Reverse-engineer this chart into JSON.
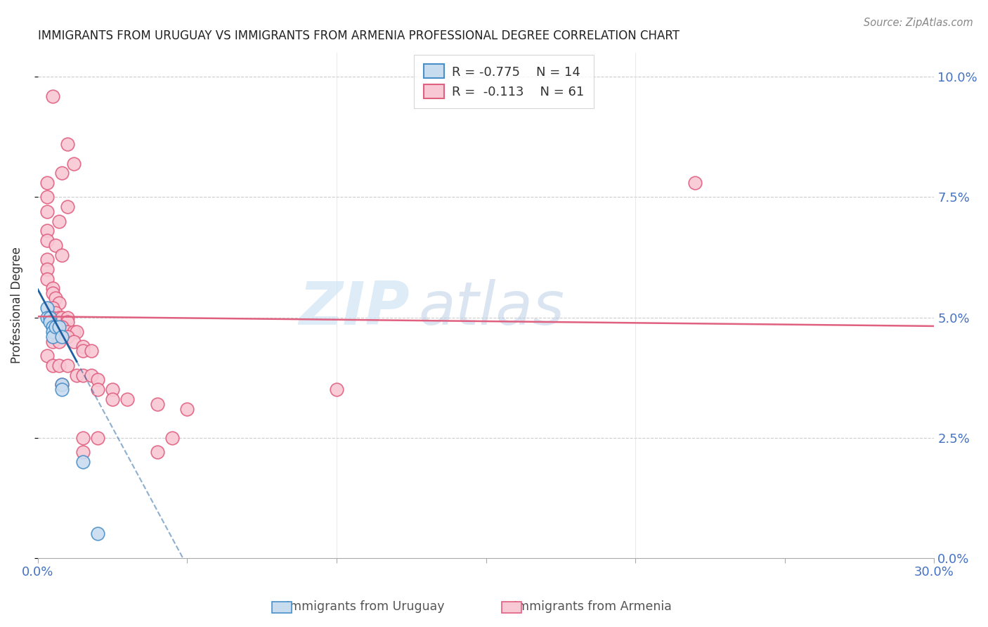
{
  "title": "IMMIGRANTS FROM URUGUAY VS IMMIGRANTS FROM ARMENIA PROFESSIONAL DEGREE CORRELATION CHART",
  "source": "Source: ZipAtlas.com",
  "ylabel": "Professional Degree",
  "xlim": [
    0.0,
    0.3
  ],
  "ylim": [
    0.0,
    0.105
  ],
  "watermark_zip": "ZIP",
  "watermark_atlas": "atlas",
  "legend_r1": "R = -0.775",
  "legend_n1": "N = 14",
  "legend_r2": "R =  -0.113",
  "legend_n2": "N = 61",
  "uruguay_fill": "#c8dcf0",
  "uruguay_edge": "#4a90c8",
  "armenia_fill": "#f8c8d4",
  "armenia_edge": "#e06080",
  "armenia_line_color": "#e06080",
  "uruguay_line_color": "#2060a0",
  "armenia_points": [
    [
      0.005,
      0.096
    ],
    [
      0.01,
      0.086
    ],
    [
      0.012,
      0.082
    ],
    [
      0.008,
      0.08
    ],
    [
      0.003,
      0.078
    ],
    [
      0.003,
      0.075
    ],
    [
      0.01,
      0.073
    ],
    [
      0.003,
      0.072
    ],
    [
      0.007,
      0.07
    ],
    [
      0.003,
      0.068
    ],
    [
      0.003,
      0.066
    ],
    [
      0.006,
      0.065
    ],
    [
      0.008,
      0.063
    ],
    [
      0.003,
      0.062
    ],
    [
      0.003,
      0.06
    ],
    [
      0.003,
      0.058
    ],
    [
      0.005,
      0.056
    ],
    [
      0.005,
      0.055
    ],
    [
      0.006,
      0.054
    ],
    [
      0.007,
      0.053
    ],
    [
      0.005,
      0.052
    ],
    [
      0.006,
      0.051
    ],
    [
      0.005,
      0.05
    ],
    [
      0.007,
      0.05
    ],
    [
      0.008,
      0.05
    ],
    [
      0.01,
      0.05
    ],
    [
      0.01,
      0.049
    ],
    [
      0.005,
      0.048
    ],
    [
      0.008,
      0.048
    ],
    [
      0.01,
      0.047
    ],
    [
      0.012,
      0.047
    ],
    [
      0.013,
      0.047
    ],
    [
      0.01,
      0.046
    ],
    [
      0.005,
      0.045
    ],
    [
      0.007,
      0.045
    ],
    [
      0.012,
      0.045
    ],
    [
      0.015,
      0.044
    ],
    [
      0.015,
      0.043
    ],
    [
      0.018,
      0.043
    ],
    [
      0.003,
      0.042
    ],
    [
      0.005,
      0.04
    ],
    [
      0.007,
      0.04
    ],
    [
      0.01,
      0.04
    ],
    [
      0.013,
      0.038
    ],
    [
      0.015,
      0.038
    ],
    [
      0.018,
      0.038
    ],
    [
      0.02,
      0.037
    ],
    [
      0.008,
      0.036
    ],
    [
      0.02,
      0.035
    ],
    [
      0.025,
      0.035
    ],
    [
      0.025,
      0.033
    ],
    [
      0.03,
      0.033
    ],
    [
      0.04,
      0.032
    ],
    [
      0.05,
      0.031
    ],
    [
      0.015,
      0.025
    ],
    [
      0.02,
      0.025
    ],
    [
      0.045,
      0.025
    ],
    [
      0.015,
      0.022
    ],
    [
      0.04,
      0.022
    ],
    [
      0.1,
      0.035
    ],
    [
      0.22,
      0.078
    ]
  ],
  "uruguay_points": [
    [
      0.003,
      0.052
    ],
    [
      0.003,
      0.05
    ],
    [
      0.004,
      0.05
    ],
    [
      0.004,
      0.049
    ],
    [
      0.005,
      0.048
    ],
    [
      0.005,
      0.047
    ],
    [
      0.005,
      0.046
    ],
    [
      0.006,
      0.048
    ],
    [
      0.007,
      0.048
    ],
    [
      0.008,
      0.046
    ],
    [
      0.008,
      0.036
    ],
    [
      0.008,
      0.035
    ],
    [
      0.015,
      0.02
    ],
    [
      0.02,
      0.005
    ]
  ],
  "armenia_regression": [
    -0.0067,
    0.0502
  ],
  "uruguay_regression": [
    -1.15,
    0.0558
  ]
}
